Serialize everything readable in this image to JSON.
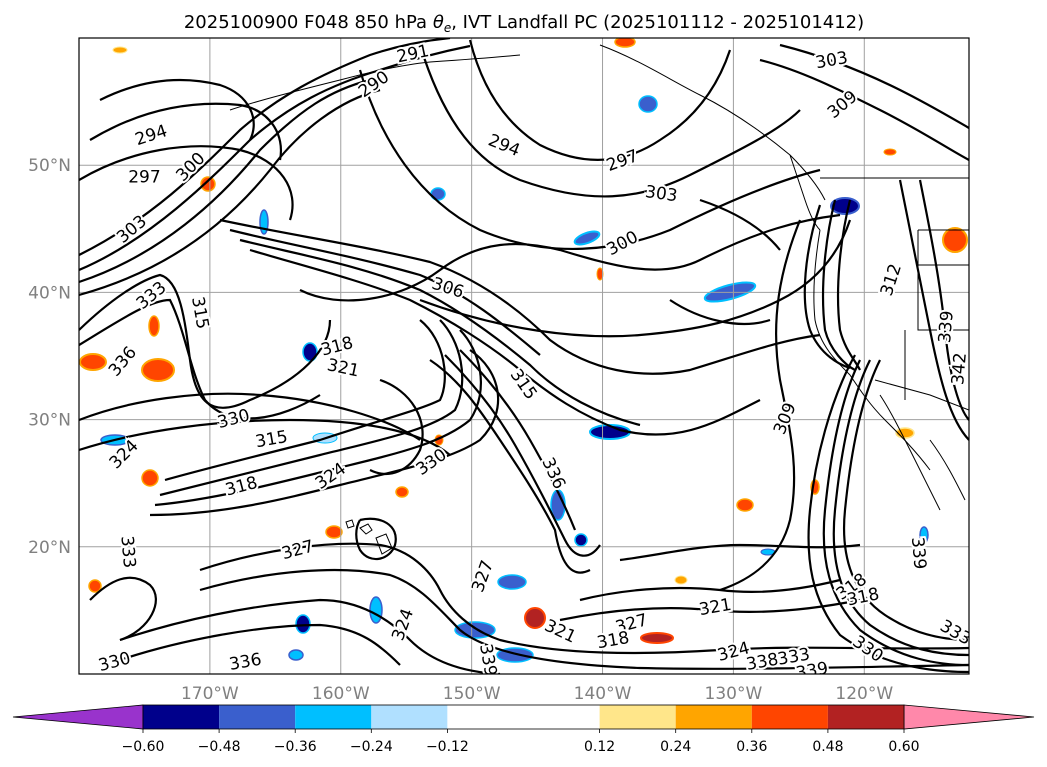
{
  "chart_data": {
    "type": "contour",
    "title": "2025100900 F048 850 hPa θe, IVT Landfall PC (2025101112 - 2025101412)",
    "title_parts": {
      "prefix": "2025100900 F048 850 hPa ",
      "theta": "θ",
      "sub": "e",
      "suffix": ", IVT Landfall PC (2025101112 - 2025101412)"
    },
    "lon_range": [
      180,
      112
    ],
    "lat_range": [
      10,
      60
    ],
    "lat_ticks": [
      {
        "value": 50,
        "label": "50°N"
      },
      {
        "value": 40,
        "label": "40°N"
      },
      {
        "value": 30,
        "label": "30°N"
      },
      {
        "value": 20,
        "label": "20°N"
      }
    ],
    "lon_ticks": [
      {
        "value": 170,
        "label": "170°W"
      },
      {
        "value": 160,
        "label": "160°W"
      },
      {
        "value": 150,
        "label": "150°W"
      },
      {
        "value": 140,
        "label": "140°W"
      },
      {
        "value": 130,
        "label": "130°W"
      },
      {
        "value": 120,
        "label": "120°W"
      }
    ],
    "grid": true,
    "colorbar": {
      "extend": "both",
      "min_color": "#9933cc",
      "max_color": "#ff88aa",
      "bins": [
        {
          "lo": -0.6,
          "hi": -0.48,
          "color": "#00008b"
        },
        {
          "lo": -0.48,
          "hi": -0.36,
          "color": "#3a5fcd"
        },
        {
          "lo": -0.36,
          "hi": -0.24,
          "color": "#00bfff"
        },
        {
          "lo": -0.24,
          "hi": -0.12,
          "color": "#b0e0ff"
        },
        {
          "lo": -0.12,
          "hi": 0.12,
          "color": "#ffffff"
        },
        {
          "lo": 0.12,
          "hi": 0.24,
          "color": "#ffe68a"
        },
        {
          "lo": 0.24,
          "hi": 0.36,
          "color": "#ffa500"
        },
        {
          "lo": 0.36,
          "hi": 0.48,
          "color": "#ff4500"
        },
        {
          "lo": 0.48,
          "hi": 0.6,
          "color": "#b22222"
        }
      ],
      "tick_labels": [
        "−0.60",
        "−0.48",
        "−0.36",
        "−0.24",
        "−0.12",
        "0.12",
        "0.24",
        "0.36",
        "0.48",
        "0.60"
      ]
    },
    "contour_labels": [
      {
        "text": "291",
        "lon": 154.5,
        "lat": 58.8,
        "rot": -12
      },
      {
        "text": "290",
        "lon": 157.5,
        "lat": 56.4,
        "rot": -35
      },
      {
        "text": "303",
        "lon": 122.5,
        "lat": 58.3,
        "rot": -10
      },
      {
        "text": "309",
        "lon": 121.7,
        "lat": 54.8,
        "rot": -40
      },
      {
        "text": "294",
        "lon": 174.5,
        "lat": 52.4,
        "rot": -18
      },
      {
        "text": "294",
        "lon": 147.5,
        "lat": 51.6,
        "rot": 22
      },
      {
        "text": "297",
        "lon": 175.0,
        "lat": 49.1,
        "rot": 0
      },
      {
        "text": "300",
        "lon": 171.5,
        "lat": 49.9,
        "rot": -45
      },
      {
        "text": "297",
        "lon": 138.5,
        "lat": 50.4,
        "rot": -20
      },
      {
        "text": "303",
        "lon": 135.5,
        "lat": 47.8,
        "rot": 8
      },
      {
        "text": "303",
        "lon": 176.0,
        "lat": 45.0,
        "rot": -40
      },
      {
        "text": "300",
        "lon": 138.5,
        "lat": 43.9,
        "rot": -28
      },
      {
        "text": "306",
        "lon": 151.8,
        "lat": 40.4,
        "rot": 18
      },
      {
        "text": "333",
        "lon": 174.5,
        "lat": 39.8,
        "rot": -40
      },
      {
        "text": "315",
        "lon": 170.7,
        "lat": 38.4,
        "rot": 80
      },
      {
        "text": "312",
        "lon": 118.0,
        "lat": 41.0,
        "rot": -72
      },
      {
        "text": "339",
        "lon": 113.8,
        "lat": 37.3,
        "rot": -85
      },
      {
        "text": "342",
        "lon": 112.8,
        "lat": 34.0,
        "rot": -85
      },
      {
        "text": "318",
        "lon": 160.3,
        "lat": 35.8,
        "rot": -15
      },
      {
        "text": "321",
        "lon": 159.8,
        "lat": 34.1,
        "rot": 12
      },
      {
        "text": "336",
        "lon": 176.7,
        "lat": 34.6,
        "rot": -50
      },
      {
        "text": "315",
        "lon": 146.0,
        "lat": 32.8,
        "rot": 55
      },
      {
        "text": "330",
        "lon": 168.2,
        "lat": 30.1,
        "rot": -15
      },
      {
        "text": "309",
        "lon": 126.1,
        "lat": 30.1,
        "rot": -68
      },
      {
        "text": "315",
        "lon": 165.3,
        "lat": 28.5,
        "rot": -10
      },
      {
        "text": "324",
        "lon": 176.6,
        "lat": 27.3,
        "rot": -45
      },
      {
        "text": "330",
        "lon": 153.1,
        "lat": 26.7,
        "rot": -35
      },
      {
        "text": "324",
        "lon": 160.8,
        "lat": 25.6,
        "rot": -35
      },
      {
        "text": "336",
        "lon": 143.7,
        "lat": 25.8,
        "rot": 65
      },
      {
        "text": "318",
        "lon": 167.6,
        "lat": 24.8,
        "rot": -15
      },
      {
        "text": "327",
        "lon": 163.3,
        "lat": 19.8,
        "rot": -15
      },
      {
        "text": "333",
        "lon": 176.2,
        "lat": 19.6,
        "rot": 85
      },
      {
        "text": "339",
        "lon": 115.8,
        "lat": 19.5,
        "rot": 85
      },
      {
        "text": "327",
        "lon": 149.2,
        "lat": 17.7,
        "rot": -70
      },
      {
        "text": "318",
        "lon": 121.0,
        "lat": 16.9,
        "rot": -35
      },
      {
        "text": "318",
        "lon": 120.1,
        "lat": 16.1,
        "rot": -12
      },
      {
        "text": "321",
        "lon": 131.4,
        "lat": 15.3,
        "rot": -10
      },
      {
        "text": "324",
        "lon": 155.3,
        "lat": 13.9,
        "rot": -70
      },
      {
        "text": "321",
        "lon": 143.2,
        "lat": 13.4,
        "rot": 25
      },
      {
        "text": "327",
        "lon": 137.8,
        "lat": 14.0,
        "rot": -15
      },
      {
        "text": "318",
        "lon": 139.2,
        "lat": 12.7,
        "rot": -10
      },
      {
        "text": "324",
        "lon": 130.0,
        "lat": 11.8,
        "rot": -15
      },
      {
        "text": "330",
        "lon": 119.7,
        "lat": 12.0,
        "rot": 35
      },
      {
        "text": "333",
        "lon": 113.0,
        "lat": 13.3,
        "rot": 30
      },
      {
        "text": "336",
        "lon": 167.3,
        "lat": 11.0,
        "rot": -10
      },
      {
        "text": "330",
        "lon": 177.3,
        "lat": 11.0,
        "rot": -15
      },
      {
        "text": "339",
        "lon": 148.7,
        "lat": 11.1,
        "rot": 80
      },
      {
        "text": "338",
        "lon": 127.8,
        "lat": 11.0,
        "rot": -10
      },
      {
        "text": "333",
        "lon": 125.4,
        "lat": 11.4,
        "rot": -10
      },
      {
        "text": "339",
        "lon": 124.0,
        "lat": 10.3,
        "rot": -10
      }
    ]
  }
}
